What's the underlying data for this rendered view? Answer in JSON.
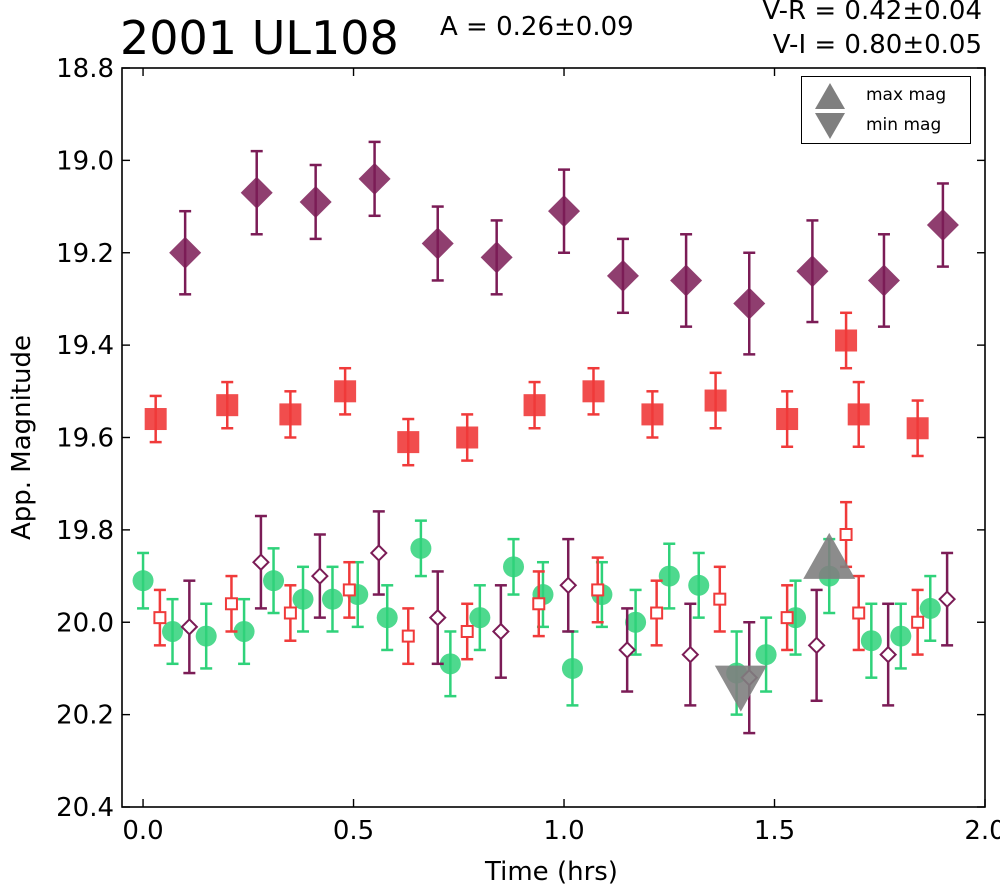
{
  "header": {
    "object_name": "2001 UL108",
    "amplitude": "A  = 0.26±0.09",
    "color_vr": "V-R = 0.42±0.04",
    "color_vi": "V-I  = 0.80±0.05"
  },
  "legend": {
    "max_label": "max mag",
    "min_label": "min mag",
    "marker_color": "#7f7f7f"
  },
  "colors": {
    "purple": "#7b1c56",
    "red": "#f03a3a",
    "green": "#2fd27a",
    "gray": "#7f7f7f"
  },
  "chart_data": {
    "type": "scatter",
    "xlabel": "Time (hrs)",
    "ylabel": "App. Magnitude",
    "xlim": [
      -0.05,
      2.0
    ],
    "ylim": [
      20.4,
      18.8
    ],
    "y_inverted": true,
    "xticks": [
      "0.0",
      "0.5",
      "1.0",
      "1.5",
      "2.0"
    ],
    "yticks": [
      "18.8",
      "19.0",
      "19.2",
      "19.4",
      "19.6",
      "19.8",
      "20.0",
      "20.2",
      "20.4"
    ],
    "grid": false,
    "legend_position": "top-right",
    "series": [
      {
        "marker": "filled-diamond",
        "color": "#7b1c56",
        "points": [
          {
            "x": 0.1,
            "y": 19.2,
            "err": 0.09
          },
          {
            "x": 0.27,
            "y": 19.07,
            "err": 0.09
          },
          {
            "x": 0.41,
            "y": 19.09,
            "err": 0.08
          },
          {
            "x": 0.55,
            "y": 19.04,
            "err": 0.08
          },
          {
            "x": 0.7,
            "y": 19.18,
            "err": 0.08
          },
          {
            "x": 0.84,
            "y": 19.21,
            "err": 0.08
          },
          {
            "x": 1.0,
            "y": 19.11,
            "err": 0.09
          },
          {
            "x": 1.14,
            "y": 19.25,
            "err": 0.08
          },
          {
            "x": 1.29,
            "y": 19.26,
            "err": 0.1
          },
          {
            "x": 1.44,
            "y": 19.31,
            "err": 0.11
          },
          {
            "x": 1.59,
            "y": 19.24,
            "err": 0.11
          },
          {
            "x": 1.76,
            "y": 19.26,
            "err": 0.1
          },
          {
            "x": 1.9,
            "y": 19.14,
            "err": 0.09
          }
        ]
      },
      {
        "marker": "filled-square",
        "color": "#f03a3a",
        "points": [
          {
            "x": 0.03,
            "y": 19.56,
            "err": 0.05
          },
          {
            "x": 0.2,
            "y": 19.53,
            "err": 0.05
          },
          {
            "x": 0.35,
            "y": 19.55,
            "err": 0.05
          },
          {
            "x": 0.48,
            "y": 19.5,
            "err": 0.05
          },
          {
            "x": 0.63,
            "y": 19.61,
            "err": 0.05
          },
          {
            "x": 0.77,
            "y": 19.6,
            "err": 0.05
          },
          {
            "x": 0.93,
            "y": 19.53,
            "err": 0.05
          },
          {
            "x": 1.07,
            "y": 19.5,
            "err": 0.05
          },
          {
            "x": 1.21,
            "y": 19.55,
            "err": 0.05
          },
          {
            "x": 1.36,
            "y": 19.52,
            "err": 0.06
          },
          {
            "x": 1.53,
            "y": 19.56,
            "err": 0.06
          },
          {
            "x": 1.67,
            "y": 19.39,
            "err": 0.06
          },
          {
            "x": 1.7,
            "y": 19.55,
            "err": 0.07
          },
          {
            "x": 1.84,
            "y": 19.58,
            "err": 0.06
          }
        ]
      },
      {
        "marker": "filled-circle",
        "color": "#2fd27a",
        "points": [
          {
            "x": 0.0,
            "y": 19.91,
            "err": 0.06
          },
          {
            "x": 0.07,
            "y": 20.02,
            "err": 0.07
          },
          {
            "x": 0.15,
            "y": 20.03,
            "err": 0.07
          },
          {
            "x": 0.24,
            "y": 20.02,
            "err": 0.07
          },
          {
            "x": 0.31,
            "y": 19.91,
            "err": 0.07
          },
          {
            "x": 0.38,
            "y": 19.95,
            "err": 0.07
          },
          {
            "x": 0.45,
            "y": 19.95,
            "err": 0.07
          },
          {
            "x": 0.51,
            "y": 19.94,
            "err": 0.07
          },
          {
            "x": 0.58,
            "y": 19.99,
            "err": 0.07
          },
          {
            "x": 0.66,
            "y": 19.84,
            "err": 0.06
          },
          {
            "x": 0.73,
            "y": 20.09,
            "err": 0.07
          },
          {
            "x": 0.8,
            "y": 19.99,
            "err": 0.07
          },
          {
            "x": 0.88,
            "y": 19.88,
            "err": 0.06
          },
          {
            "x": 0.95,
            "y": 19.94,
            "err": 0.07
          },
          {
            "x": 1.02,
            "y": 20.1,
            "err": 0.08
          },
          {
            "x": 1.09,
            "y": 19.94,
            "err": 0.07
          },
          {
            "x": 1.17,
            "y": 20.0,
            "err": 0.07
          },
          {
            "x": 1.25,
            "y": 19.9,
            "err": 0.07
          },
          {
            "x": 1.32,
            "y": 19.92,
            "err": 0.07
          },
          {
            "x": 1.41,
            "y": 20.11,
            "err": 0.09
          },
          {
            "x": 1.48,
            "y": 20.07,
            "err": 0.08
          },
          {
            "x": 1.55,
            "y": 19.99,
            "err": 0.08
          },
          {
            "x": 1.63,
            "y": 19.9,
            "err": 0.08
          },
          {
            "x": 1.73,
            "y": 20.04,
            "err": 0.08
          },
          {
            "x": 1.8,
            "y": 20.03,
            "err": 0.07
          },
          {
            "x": 1.87,
            "y": 19.97,
            "err": 0.07
          }
        ]
      },
      {
        "marker": "open-square",
        "color": "#f03a3a",
        "points": [
          {
            "x": 0.04,
            "y": 19.99,
            "err": 0.06
          },
          {
            "x": 0.21,
            "y": 19.96,
            "err": 0.06
          },
          {
            "x": 0.35,
            "y": 19.98,
            "err": 0.06
          },
          {
            "x": 0.49,
            "y": 19.93,
            "err": 0.06
          },
          {
            "x": 0.63,
            "y": 20.03,
            "err": 0.06
          },
          {
            "x": 0.77,
            "y": 20.02,
            "err": 0.06
          },
          {
            "x": 0.94,
            "y": 19.96,
            "err": 0.07
          },
          {
            "x": 1.08,
            "y": 19.93,
            "err": 0.07
          },
          {
            "x": 1.22,
            "y": 19.98,
            "err": 0.07
          },
          {
            "x": 1.37,
            "y": 19.95,
            "err": 0.07
          },
          {
            "x": 1.53,
            "y": 19.99,
            "err": 0.07
          },
          {
            "x": 1.67,
            "y": 19.81,
            "err": 0.07
          },
          {
            "x": 1.7,
            "y": 19.98,
            "err": 0.08
          },
          {
            "x": 1.84,
            "y": 20.0,
            "err": 0.07
          }
        ]
      },
      {
        "marker": "open-diamond",
        "color": "#7b1c56",
        "points": [
          {
            "x": 0.11,
            "y": 20.01,
            "err": 0.1
          },
          {
            "x": 0.28,
            "y": 19.87,
            "err": 0.1
          },
          {
            "x": 0.42,
            "y": 19.9,
            "err": 0.09
          },
          {
            "x": 0.56,
            "y": 19.85,
            "err": 0.09
          },
          {
            "x": 0.7,
            "y": 19.99,
            "err": 0.1
          },
          {
            "x": 0.85,
            "y": 20.02,
            "err": 0.1
          },
          {
            "x": 1.01,
            "y": 19.92,
            "err": 0.1
          },
          {
            "x": 1.15,
            "y": 20.06,
            "err": 0.09
          },
          {
            "x": 1.3,
            "y": 20.07,
            "err": 0.11
          },
          {
            "x": 1.44,
            "y": 20.12,
            "err": 0.12
          },
          {
            "x": 1.6,
            "y": 20.05,
            "err": 0.12
          },
          {
            "x": 1.77,
            "y": 20.07,
            "err": 0.11
          },
          {
            "x": 1.91,
            "y": 19.95,
            "err": 0.1
          }
        ]
      }
    ],
    "extrema": [
      {
        "label": "max mag",
        "x": 1.63,
        "y": 19.88
      },
      {
        "label": "min mag",
        "x": 1.42,
        "y": 20.12
      }
    ]
  }
}
